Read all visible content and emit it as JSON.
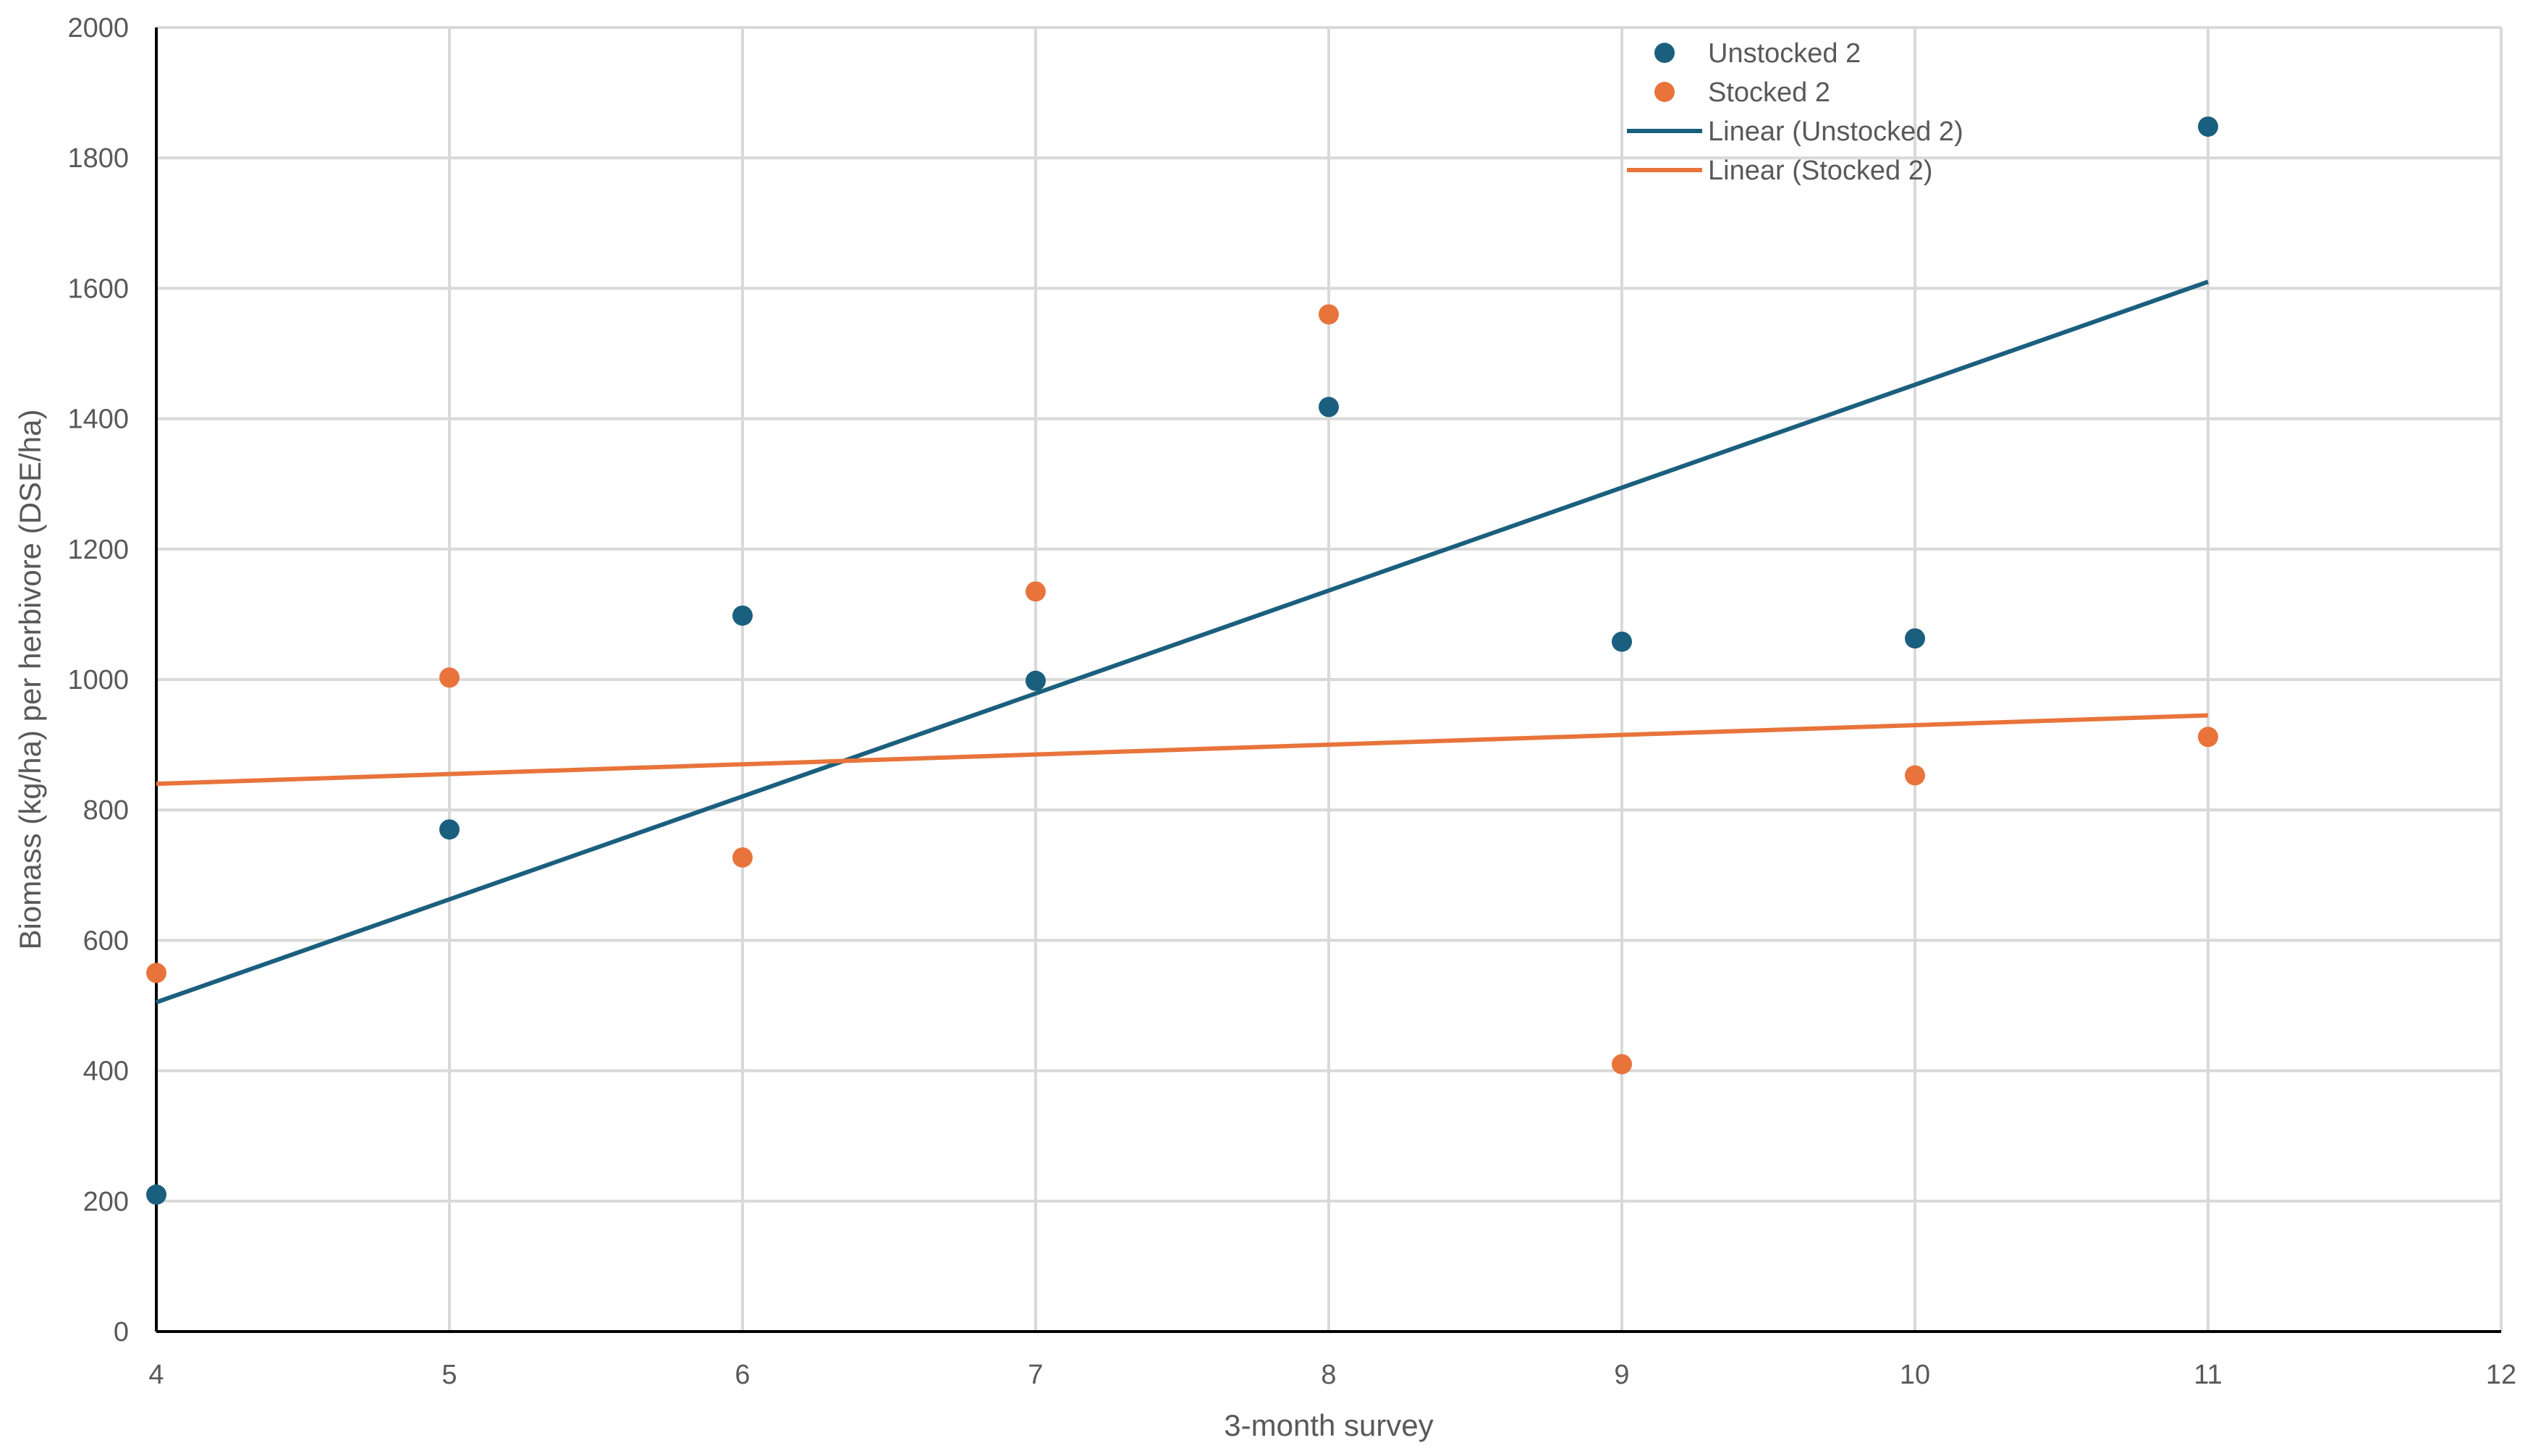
{
  "chart_data": {
    "type": "scatter",
    "title": "",
    "xlabel": "3-month survey",
    "ylabel": "Biomass (kg/ha) per herbivore (DSE/ha)",
    "xlim": [
      4,
      12
    ],
    "ylim": [
      0,
      2000
    ],
    "x_ticks": [
      4,
      5,
      6,
      7,
      8,
      9,
      10,
      11,
      12
    ],
    "y_ticks": [
      0,
      200,
      400,
      600,
      800,
      1000,
      1200,
      1400,
      1600,
      1800,
      2000
    ],
    "grid": true,
    "legend_position": "top-right",
    "series": [
      {
        "name": "Unstocked 2",
        "type": "scatter",
        "color": "#1b5f7e",
        "x": [
          4,
          5,
          6,
          7,
          8,
          9,
          10,
          11
        ],
        "y": [
          210,
          770,
          1098,
          998,
          1418,
          1058,
          1063,
          1848
        ]
      },
      {
        "name": "Stocked 2",
        "type": "scatter",
        "color": "#e8743b",
        "x": [
          4,
          5,
          6,
          7,
          8,
          9,
          10,
          11
        ],
        "y": [
          550,
          1003,
          727,
          1135,
          1560,
          410,
          853,
          912
        ]
      },
      {
        "name": "Linear (Unstocked 2)",
        "type": "line",
        "color": "#1b5f7e",
        "x": [
          4,
          11
        ],
        "y": [
          505,
          1610
        ]
      },
      {
        "name": "Linear (Stocked 2)",
        "type": "line",
        "color": "#e8743b",
        "x": [
          4,
          11
        ],
        "y": [
          840,
          945
        ]
      }
    ]
  }
}
